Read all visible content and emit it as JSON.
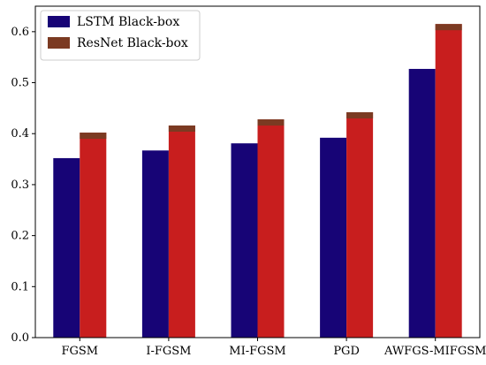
{
  "chart_data": {
    "type": "bar",
    "categories": [
      "FGSM",
      "I-FGSM",
      "MI-FGSM",
      "PGD",
      "AWFGS-MIFGSM"
    ],
    "series": [
      {
        "name": "LSTM Black-box",
        "values": [
          0.352,
          0.367,
          0.381,
          0.392,
          0.527
        ],
        "color": "#170476"
      },
      {
        "name": "ResNet Black-box",
        "values": [
          0.402,
          0.416,
          0.428,
          0.442,
          0.615
        ],
        "color": "#c81e1e",
        "cap_color": "#7b3a22"
      }
    ],
    "ylim": [
      0,
      0.65
    ],
    "yticks": [
      "0.0",
      "0.1",
      "0.2",
      "0.3",
      "0.4",
      "0.5",
      "0.6"
    ],
    "ytick_values": [
      0,
      0.1,
      0.2,
      0.3,
      0.4,
      0.5,
      0.6
    ],
    "xlabel": "",
    "ylabel": "",
    "title": "",
    "grid": false,
    "legend_position": "top-left"
  }
}
